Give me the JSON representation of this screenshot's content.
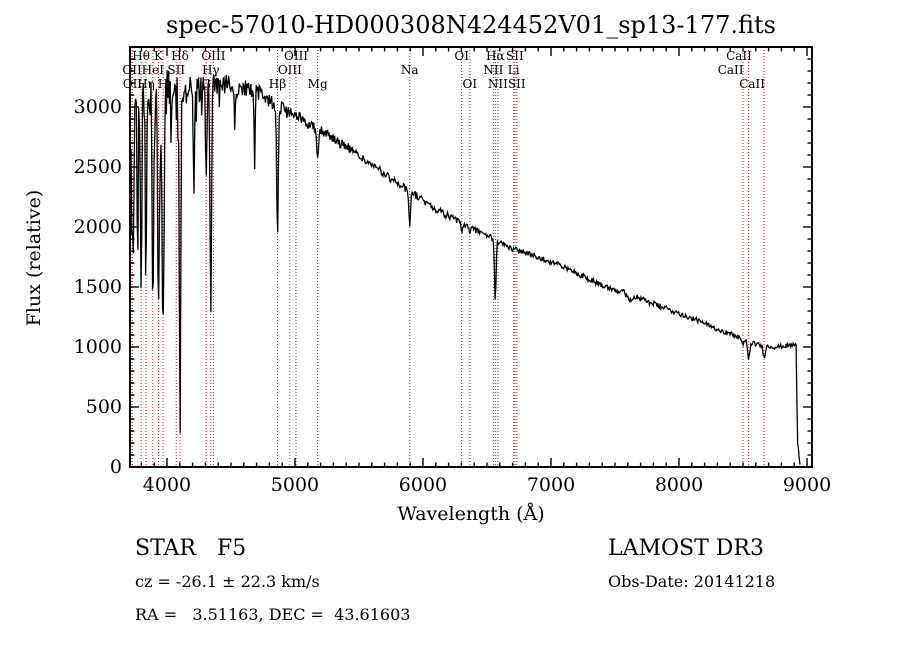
{
  "title": "spec-57010-HD000308N424452V01_sp13-177.fits",
  "annotations": {
    "class_label": "STAR   F5",
    "survey_label": "LAMOST DR3",
    "cz_label": "cz = -26.1 ± 22.3 km/s",
    "obs_date_label": "Obs-Date: 20141218",
    "coords_label": "RA =   3.51163, DEC =  43.61603"
  },
  "chart_data": {
    "type": "line",
    "title": "spec-57010-HD000308N424452V01_sp13-177.fits",
    "xlabel": "Wavelength (Å)",
    "ylabel": "Flux (relative)",
    "xlim": [
      3711,
      9039
    ],
    "ylim": [
      0,
      3500
    ],
    "x_ticks": [
      4000,
      5000,
      6000,
      7000,
      8000,
      9000
    ],
    "y_ticks": [
      0,
      500,
      1000,
      1500,
      2000,
      2500,
      3000
    ],
    "x_minor_step": 100,
    "y_minor_step": 100,
    "grid": false,
    "line_marker_color": "#a03333",
    "trace_color": "#000000",
    "spectral_lines": [
      {
        "label": "Hθ",
        "wl": 3798,
        "row": 1
      },
      {
        "label": "K",
        "wl": 3934,
        "row": 1
      },
      {
        "label": "Hδ",
        "wl": 4102,
        "row": 1
      },
      {
        "label": "OIII",
        "wl": 4363,
        "row": 1
      },
      {
        "label": "OIII",
        "wl": 5008,
        "row": 1
      },
      {
        "label": "OI",
        "wl": 6302,
        "row": 1
      },
      {
        "label": "Hα",
        "wl": 6565,
        "row": 1
      },
      {
        "label": "SII",
        "wl": 6718,
        "row": 1
      },
      {
        "label": "CaII",
        "wl": 8500,
        "row": 1,
        "dx": -4
      },
      {
        "label": "OII",
        "wl": 3727,
        "row": 2
      },
      {
        "label": "HeI",
        "wl": 3889,
        "row": 2
      },
      {
        "label": "SII",
        "wl": 4072,
        "row": 2
      },
      {
        "label": "Hγ",
        "wl": 4342,
        "row": 2
      },
      {
        "label": "OIII",
        "wl": 4960,
        "row": 2
      },
      {
        "label": "Na",
        "wl": 5896,
        "row": 2
      },
      {
        "label": "NII",
        "wl": 6550,
        "row": 2
      },
      {
        "label": "Li",
        "wl": 6708,
        "row": 2
      },
      {
        "label": "CaII",
        "wl": 8544,
        "row": 2,
        "dx": -18
      },
      {
        "label": "OII",
        "wl": 3730,
        "row": 3
      },
      {
        "label": "Hη",
        "wl": 3836,
        "row": 3
      },
      {
        "label": "H",
        "wl": 3969,
        "row": 3
      },
      {
        "label": "G",
        "wl": 4306,
        "row": 3
      },
      {
        "label": "Hβ",
        "wl": 4863,
        "row": 3
      },
      {
        "label": "Mg",
        "wl": 5177,
        "row": 3
      },
      {
        "label": "OI",
        "wl": 6366,
        "row": 3
      },
      {
        "label": "NII",
        "wl": 6585,
        "row": 3
      },
      {
        "label": "SII",
        "wl": 6733,
        "row": 3
      },
      {
        "label": "CaII",
        "wl": 8665,
        "row": 3,
        "dx": -12
      }
    ],
    "continuum": [
      [
        3711,
        2100
      ],
      [
        3730,
        2950
      ],
      [
        3780,
        3050
      ],
      [
        3850,
        3120
      ],
      [
        3950,
        3150
      ],
      [
        4050,
        3120
      ],
      [
        4150,
        3160
      ],
      [
        4250,
        3140
      ],
      [
        4350,
        3160
      ],
      [
        4450,
        3190
      ],
      [
        4550,
        3160
      ],
      [
        4650,
        3140
      ],
      [
        4750,
        3100
      ],
      [
        4850,
        3020
      ],
      [
        4950,
        2950
      ],
      [
        5050,
        2900
      ],
      [
        5150,
        2840
      ],
      [
        5250,
        2780
      ],
      [
        5350,
        2700
      ],
      [
        5450,
        2640
      ],
      [
        5550,
        2550
      ],
      [
        5650,
        2480
      ],
      [
        5750,
        2400
      ],
      [
        5850,
        2330
      ],
      [
        5950,
        2260
      ],
      [
        6050,
        2180
      ],
      [
        6150,
        2120
      ],
      [
        6250,
        2060
      ],
      [
        6350,
        2000
      ],
      [
        6450,
        1960
      ],
      [
        6550,
        1900
      ],
      [
        6650,
        1840
      ],
      [
        6750,
        1800
      ],
      [
        6850,
        1770
      ],
      [
        6950,
        1730
      ],
      [
        7050,
        1690
      ],
      [
        7150,
        1640
      ],
      [
        7250,
        1590
      ],
      [
        7350,
        1540
      ],
      [
        7450,
        1500
      ],
      [
        7550,
        1460
      ],
      [
        7650,
        1420
      ],
      [
        7750,
        1380
      ],
      [
        7850,
        1340
      ],
      [
        7950,
        1300
      ],
      [
        8050,
        1260
      ],
      [
        8150,
        1220
      ],
      [
        8250,
        1170
      ],
      [
        8350,
        1130
      ],
      [
        8450,
        1090
      ],
      [
        8550,
        1040
      ],
      [
        8650,
        1010
      ],
      [
        8750,
        1000
      ],
      [
        8850,
        1010
      ],
      [
        8915,
        1020
      ],
      [
        8925,
        200
      ],
      [
        8945,
        40
      ]
    ],
    "absorption_lines": [
      [
        3735,
        1650,
        5
      ],
      [
        3770,
        1600,
        4
      ],
      [
        3798,
        1450,
        5
      ],
      [
        3836,
        1450,
        5
      ],
      [
        3889,
        1300,
        6
      ],
      [
        3934,
        1350,
        7
      ],
      [
        3969,
        1050,
        8
      ],
      [
        4102,
        680,
        6
      ],
      [
        4210,
        2250,
        4
      ],
      [
        4306,
        2450,
        5
      ],
      [
        4342,
        1280,
        6
      ],
      [
        4530,
        2800,
        4
      ],
      [
        4685,
        2550,
        4
      ],
      [
        4863,
        1900,
        6
      ],
      [
        5177,
        2620,
        9
      ],
      [
        5896,
        2000,
        6
      ],
      [
        6302,
        1950,
        5
      ],
      [
        6366,
        1960,
        5
      ],
      [
        6565,
        1380,
        6
      ],
      [
        7620,
        1390,
        11
      ],
      [
        8500,
        1010,
        7
      ],
      [
        8544,
        900,
        8
      ],
      [
        8665,
        915,
        8
      ]
    ],
    "noise_profile": [
      [
        3711,
        260
      ],
      [
        3800,
        230
      ],
      [
        3900,
        200
      ],
      [
        4000,
        180
      ],
      [
        4100,
        150
      ],
      [
        4300,
        120
      ],
      [
        4500,
        90
      ],
      [
        4700,
        70
      ],
      [
        4900,
        55
      ],
      [
        5200,
        45
      ],
      [
        5600,
        35
      ],
      [
        6000,
        30
      ],
      [
        6500,
        25
      ],
      [
        7000,
        22
      ],
      [
        7600,
        25
      ],
      [
        8200,
        20
      ],
      [
        8800,
        18
      ],
      [
        9000,
        22
      ]
    ],
    "blue_spike": {
      "max_wl": 4480,
      "prob": 0.1,
      "scale": 2.2
    },
    "noise_seed": 19
  }
}
